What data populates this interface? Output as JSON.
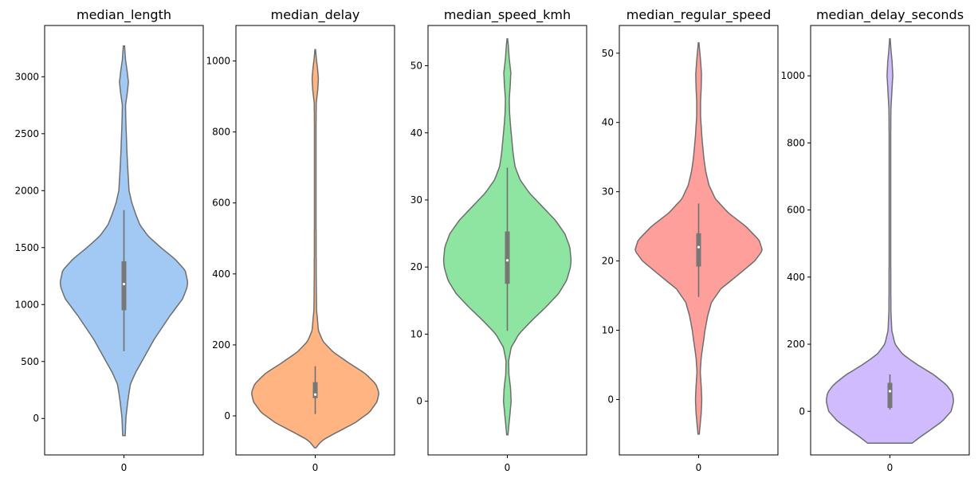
{
  "chart_data": [
    {
      "type": "violin",
      "title": "median_length",
      "color": "#a1c9f4",
      "xtick": "0",
      "ylim": [
        -320,
        3450
      ],
      "yticks": [
        0,
        500,
        1000,
        1500,
        2000,
        2500,
        3000
      ],
      "violin_range": [
        -150,
        3270
      ],
      "box": {
        "q1": 950,
        "median": 1180,
        "q3": 1380,
        "whisker_low": 590,
        "whisker_high": 1830
      },
      "density": [
        [
          -150,
          0.02
        ],
        [
          0,
          0.03
        ],
        [
          150,
          0.06
        ],
        [
          300,
          0.1
        ],
        [
          400,
          0.18
        ],
        [
          500,
          0.28
        ],
        [
          700,
          0.48
        ],
        [
          900,
          0.72
        ],
        [
          1050,
          0.92
        ],
        [
          1150,
          0.99
        ],
        [
          1200,
          1.0
        ],
        [
          1300,
          0.96
        ],
        [
          1400,
          0.8
        ],
        [
          1500,
          0.58
        ],
        [
          1600,
          0.38
        ],
        [
          1700,
          0.25
        ],
        [
          1800,
          0.18
        ],
        [
          1900,
          0.12
        ],
        [
          2000,
          0.08
        ],
        [
          2100,
          0.07
        ],
        [
          2200,
          0.06
        ],
        [
          2300,
          0.05
        ],
        [
          2450,
          0.04
        ],
        [
          2600,
          0.03
        ],
        [
          2750,
          0.025
        ],
        [
          2850,
          0.05
        ],
        [
          2950,
          0.07
        ],
        [
          3050,
          0.05
        ],
        [
          3150,
          0.025
        ],
        [
          3270,
          0.01
        ]
      ]
    },
    {
      "type": "violin",
      "title": "median_delay",
      "color": "#ffb482",
      "xtick": "0",
      "ylim": [
        -110,
        1100
      ],
      "yticks": [
        0,
        200,
        400,
        600,
        800,
        1000
      ],
      "violin_range": [
        -90,
        1032
      ],
      "box": {
        "q1": 50,
        "median": 60,
        "q3": 95,
        "whisker_low": 5,
        "whisker_high": 140
      },
      "density": [
        [
          -90,
          0.01
        ],
        [
          -70,
          0.1
        ],
        [
          -50,
          0.3
        ],
        [
          -20,
          0.62
        ],
        [
          10,
          0.85
        ],
        [
          40,
          0.97
        ],
        [
          65,
          1.0
        ],
        [
          90,
          0.95
        ],
        [
          120,
          0.78
        ],
        [
          150,
          0.52
        ],
        [
          180,
          0.28
        ],
        [
          210,
          0.12
        ],
        [
          240,
          0.05
        ],
        [
          300,
          0.02
        ],
        [
          400,
          0.015
        ],
        [
          600,
          0.012
        ],
        [
          800,
          0.012
        ],
        [
          880,
          0.015
        ],
        [
          920,
          0.04
        ],
        [
          950,
          0.05
        ],
        [
          980,
          0.035
        ],
        [
          1010,
          0.015
        ],
        [
          1032,
          0.005
        ]
      ]
    },
    {
      "type": "violin",
      "title": "median_speed_kmh",
      "color": "#8de5a1",
      "xtick": "0",
      "ylim": [
        -8,
        56
      ],
      "yticks": [
        0,
        10,
        20,
        30,
        40,
        50
      ],
      "violin_range": [
        -5,
        54
      ],
      "box": {
        "q1": 17.5,
        "median": 21,
        "q3": 25.3,
        "whisker_low": 10.5,
        "whisker_high": 34.8
      },
      "density": [
        [
          -5,
          0.01
        ],
        [
          -2,
          0.04
        ],
        [
          0,
          0.06
        ],
        [
          2,
          0.05
        ],
        [
          4,
          0.025
        ],
        [
          6,
          0.02
        ],
        [
          8,
          0.06
        ],
        [
          10,
          0.18
        ],
        [
          12,
          0.38
        ],
        [
          14,
          0.6
        ],
        [
          16,
          0.8
        ],
        [
          18,
          0.93
        ],
        [
          20,
          0.99
        ],
        [
          21,
          1.0
        ],
        [
          23,
          0.98
        ],
        [
          25,
          0.9
        ],
        [
          27,
          0.75
        ],
        [
          29,
          0.55
        ],
        [
          31,
          0.35
        ],
        [
          33,
          0.2
        ],
        [
          35,
          0.12
        ],
        [
          37,
          0.09
        ],
        [
          39,
          0.07
        ],
        [
          41,
          0.05
        ],
        [
          43,
          0.035
        ],
        [
          45,
          0.03
        ],
        [
          47,
          0.045
        ],
        [
          49,
          0.055
        ],
        [
          51,
          0.03
        ],
        [
          53,
          0.015
        ],
        [
          54,
          0.005
        ]
      ]
    },
    {
      "type": "violin",
      "title": "median_regular_speed",
      "color": "#ff9f9b",
      "xtick": "0",
      "ylim": [
        -8,
        54
      ],
      "yticks": [
        0,
        10,
        20,
        30,
        40,
        50
      ],
      "violin_range": [
        -5,
        51.5
      ],
      "box": {
        "q1": 19.2,
        "median": 22,
        "q3": 24,
        "whisker_low": 14.8,
        "whisker_high": 28.3
      },
      "density": [
        [
          -5,
          0.01
        ],
        [
          -2,
          0.04
        ],
        [
          0,
          0.05
        ],
        [
          2,
          0.04
        ],
        [
          4,
          0.025
        ],
        [
          6,
          0.04
        ],
        [
          8,
          0.07
        ],
        [
          10,
          0.1
        ],
        [
          12,
          0.14
        ],
        [
          14,
          0.2
        ],
        [
          16,
          0.35
        ],
        [
          18,
          0.62
        ],
        [
          20,
          0.88
        ],
        [
          21.5,
          1.0
        ],
        [
          23,
          0.95
        ],
        [
          25,
          0.74
        ],
        [
          27,
          0.46
        ],
        [
          29,
          0.26
        ],
        [
          31,
          0.16
        ],
        [
          33,
          0.11
        ],
        [
          35,
          0.08
        ],
        [
          38,
          0.05
        ],
        [
          41,
          0.03
        ],
        [
          43,
          0.03
        ],
        [
          45,
          0.04
        ],
        [
          47,
          0.045
        ],
        [
          49,
          0.03
        ],
        [
          51,
          0.01
        ],
        [
          51.5,
          0.005
        ]
      ]
    },
    {
      "type": "violin",
      "title": "median_delay_seconds",
      "color": "#d0bbff",
      "xtick": "0",
      "ylim": [
        -130,
        1150
      ],
      "yticks": [
        0,
        200,
        400,
        600,
        800,
        1000
      ],
      "violin_range": [
        -95,
        1110
      ],
      "box": {
        "q1": 10,
        "median": 60,
        "q3": 85,
        "whisker_low": 5,
        "whisker_high": 110
      },
      "density": [
        [
          -95,
          0.35
        ],
        [
          -80,
          0.45
        ],
        [
          -60,
          0.6
        ],
        [
          -30,
          0.82
        ],
        [
          0,
          0.96
        ],
        [
          30,
          1.0
        ],
        [
          55,
          0.98
        ],
        [
          80,
          0.88
        ],
        [
          110,
          0.68
        ],
        [
          140,
          0.42
        ],
        [
          170,
          0.2
        ],
        [
          200,
          0.08
        ],
        [
          240,
          0.03
        ],
        [
          300,
          0.015
        ],
        [
          500,
          0.012
        ],
        [
          800,
          0.012
        ],
        [
          900,
          0.015
        ],
        [
          950,
          0.03
        ],
        [
          1000,
          0.045
        ],
        [
          1040,
          0.035
        ],
        [
          1080,
          0.015
        ],
        [
          1110,
          0.005
        ]
      ]
    }
  ]
}
